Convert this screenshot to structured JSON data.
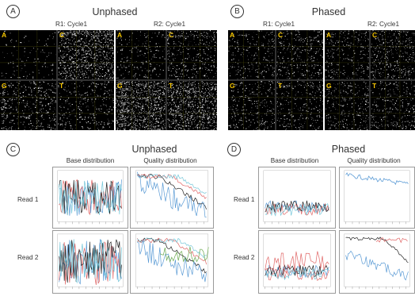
{
  "panel_a": {
    "badge": "A",
    "title": "Unphased",
    "left_sub": "R1: Cycle1",
    "right_sub": "R2: Cycle1",
    "tile_labels": [
      "A",
      "C",
      "G",
      "T"
    ]
  },
  "panel_b": {
    "badge": "B",
    "title": "Phased",
    "left_sub": "R1: Cycle1",
    "right_sub": "R2: Cycle1",
    "tile_labels": [
      "A",
      "C",
      "G",
      "T"
    ]
  },
  "panel_c": {
    "badge": "C",
    "title": "Unphased",
    "col1": "Base distribution",
    "col2": "Quality distribution",
    "row1": "Read 1",
    "row2": "Read 2"
  },
  "panel_d": {
    "badge": "D",
    "title": "Phased",
    "col1": "Base distribution",
    "col2": "Quality distribution",
    "row1": "Read 1",
    "row2": "Read 2"
  },
  "colors": {
    "tile_label": "#f4c400",
    "series_blue": "#5b9bd5",
    "series_red": "#e06666",
    "series_black": "#222222",
    "series_green": "#6aa84f",
    "series_cyan": "#76c7d9"
  }
}
